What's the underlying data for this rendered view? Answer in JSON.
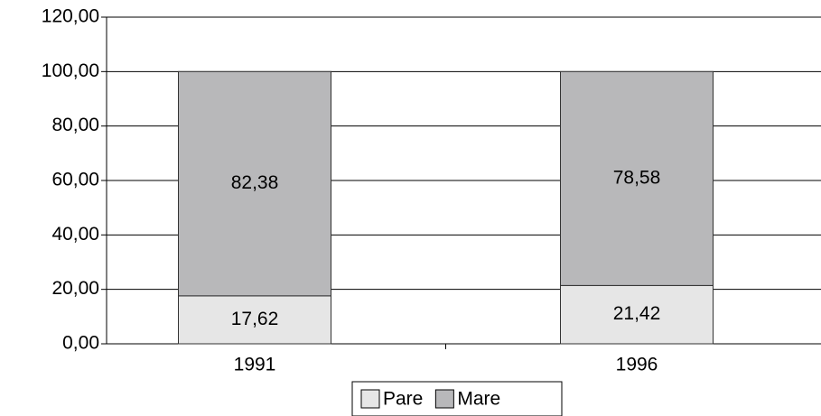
{
  "chart_data": {
    "type": "stacked_bar",
    "categories": [
      "1991",
      "1996"
    ],
    "series": [
      {
        "name": "Pare",
        "color": "#e6e6e6",
        "values": [
          17.62,
          21.42
        ],
        "value_labels": [
          "17,62",
          "21,42"
        ]
      },
      {
        "name": "Mare",
        "color": "#b8b8ba",
        "values": [
          82.38,
          78.58
        ],
        "value_labels": [
          "82,38",
          "78,58"
        ]
      }
    ],
    "ylim": [
      0,
      120
    ],
    "yticks": [
      {
        "value": 0,
        "label": "0,00"
      },
      {
        "value": 20,
        "label": "20,00"
      },
      {
        "value": 40,
        "label": "40,00"
      },
      {
        "value": 60,
        "label": "60,00"
      },
      {
        "value": 80,
        "label": "80,00"
      },
      {
        "value": 100,
        "label": "100,00"
      },
      {
        "value": 120,
        "label": "120,00"
      }
    ],
    "grid": true,
    "legend": "bottom"
  }
}
